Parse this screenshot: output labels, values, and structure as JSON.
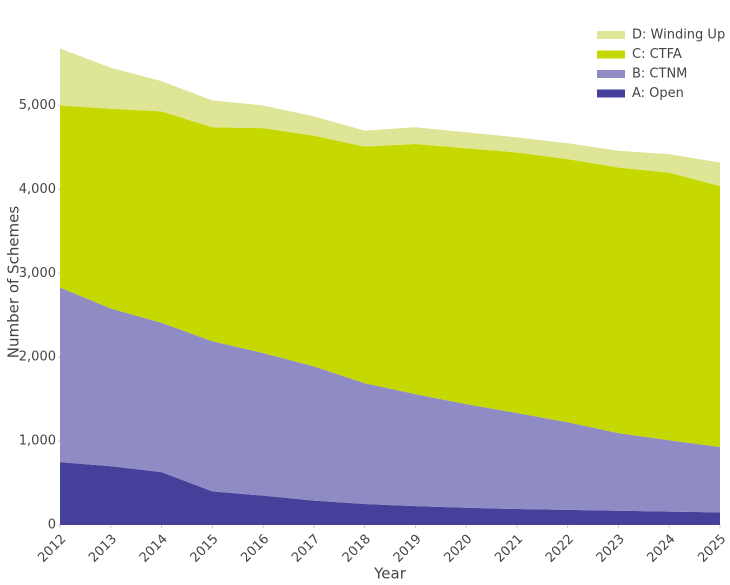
{
  "chart_data": {
    "type": "stacked-area",
    "x_label": "Year",
    "y_label": "Number of Schemes",
    "x": [
      2012,
      2013,
      2014,
      2015,
      2016,
      2017,
      2018,
      2019,
      2020,
      2021,
      2022,
      2023,
      2024,
      2025
    ],
    "xlim": [
      2012,
      2025
    ],
    "xticks": [
      2012,
      2013,
      2014,
      2015,
      2016,
      2017,
      2018,
      2019,
      2020,
      2021,
      2022,
      2023,
      2024,
      2025
    ],
    "ylim": [
      0,
      5780
    ],
    "yticks": [
      0,
      {
        "value": 1000,
        "label": "1,000"
      },
      {
        "value": 2000,
        "label": "2,000"
      },
      {
        "value": 3000,
        "label": "3,000"
      },
      {
        "value": 4000,
        "label": "4,000"
      },
      {
        "value": 5000,
        "label": "5,000"
      }
    ],
    "legend_position": "top-right",
    "series": [
      {
        "name": "A: Open",
        "color": "#45409a",
        "values": [
          750,
          700,
          630,
          400,
          350,
          290,
          250,
          225,
          205,
          190,
          180,
          170,
          160,
          150
        ]
      },
      {
        "name": "B: CTNM",
        "color": "#8f8bc4",
        "values": [
          2080,
          1880,
          1780,
          1790,
          1700,
          1600,
          1440,
          1335,
          1235,
          1145,
          1045,
          925,
          850,
          780
        ]
      },
      {
        "name": "C: CTFA",
        "color": "#c5d900",
        "values": [
          2170,
          2380,
          2520,
          2550,
          2680,
          2750,
          2820,
          2980,
          3050,
          3105,
          3135,
          3165,
          3190,
          3110
        ]
      },
      {
        "name": "D: Winding Up",
        "color": "#dfe596",
        "values": [
          680,
          490,
          360,
          320,
          270,
          230,
          190,
          200,
          190,
          180,
          190,
          200,
          220,
          280
        ]
      }
    ]
  }
}
